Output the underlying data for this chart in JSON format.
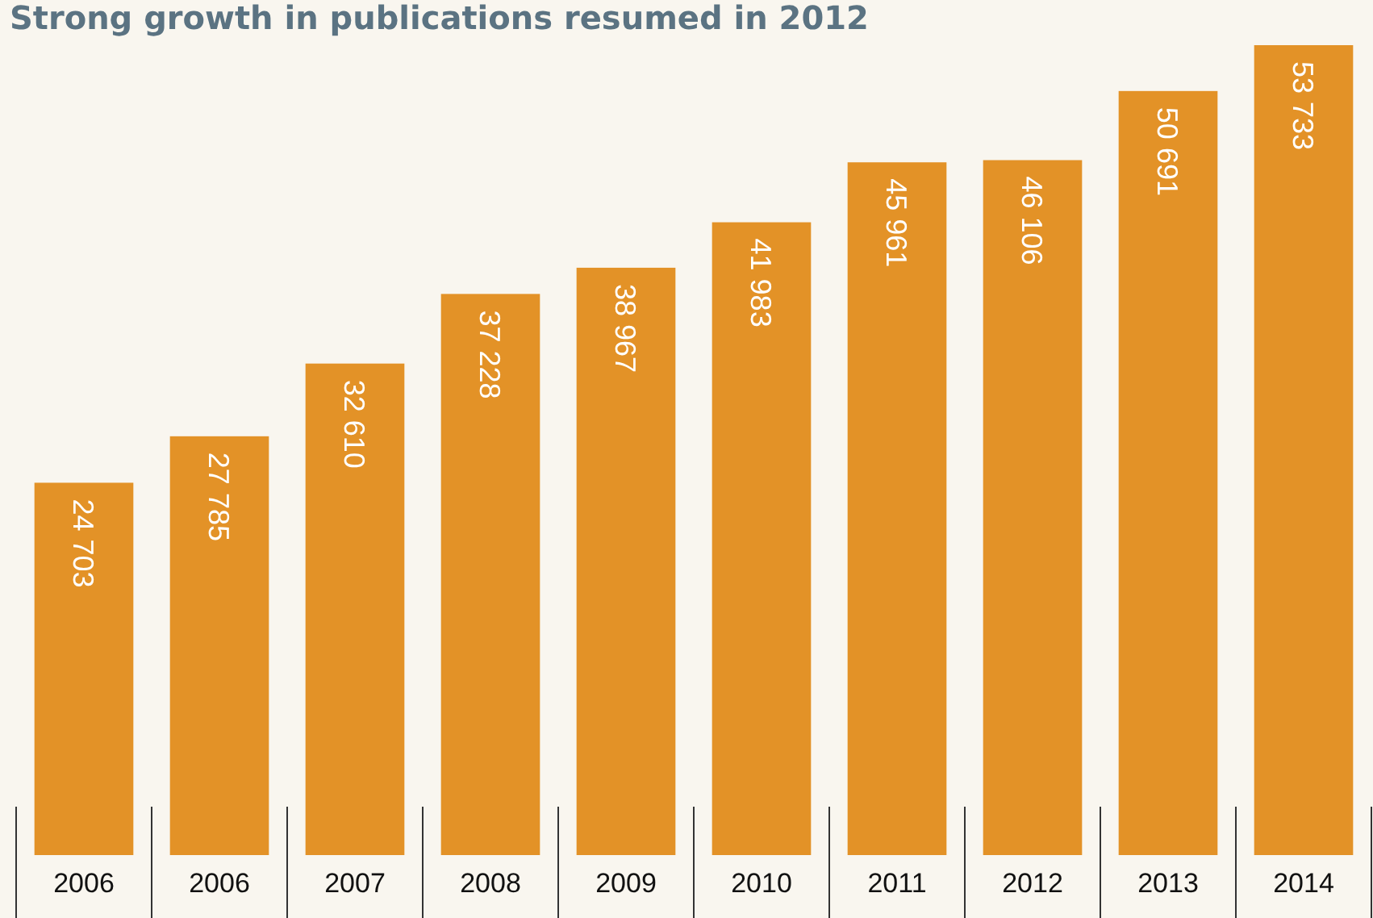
{
  "chart_data": {
    "type": "bar",
    "title": "Strong growth in publications resumed in 2012",
    "categories": [
      "2006",
      "2006",
      "2007",
      "2008",
      "2009",
      "2010",
      "2011",
      "2012",
      "2013",
      "2014"
    ],
    "values": [
      24703,
      27785,
      32610,
      37228,
      38967,
      41983,
      45961,
      46106,
      50691,
      53733
    ],
    "value_labels": [
      "24 703",
      "27 785",
      "32 610",
      "37 228",
      "38 967",
      "41 983",
      "45 961",
      "46 106",
      "50 691",
      "53 733"
    ],
    "color": "#e39227"
  }
}
